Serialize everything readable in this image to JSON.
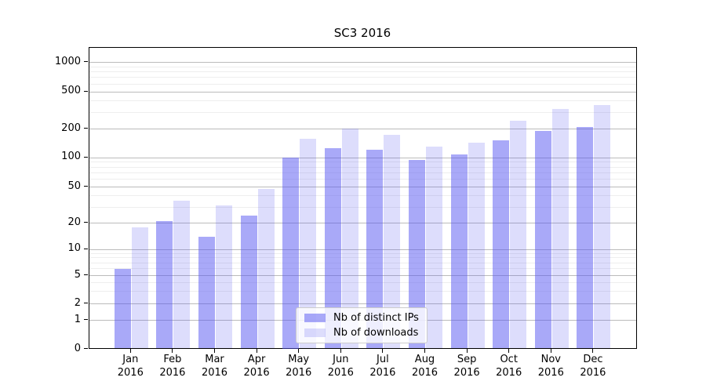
{
  "title": "SC3 2016",
  "legend": {
    "items": [
      {
        "label": "Nb of distinct IPs",
        "swatch": "dark"
      },
      {
        "label": "Nb of downloads",
        "swatch": "light"
      }
    ]
  },
  "colors": {
    "bar_base_rgb": "84,84,242",
    "bar_dark_alpha": 0.5,
    "bar_light_alpha": 0.2,
    "grid_major": "#bbbbbb",
    "grid_minor": "#eeeeee",
    "spine": "#000000",
    "text": "#000000",
    "legend_border": "#cccccc"
  },
  "axes": {
    "y_major_ticks": [
      0,
      1,
      2,
      5,
      10,
      20,
      50,
      100,
      200,
      500,
      1000
    ],
    "y_minor_ticks": [
      3,
      4,
      6,
      7,
      8,
      9,
      30,
      40,
      60,
      70,
      80,
      90,
      300,
      400,
      600,
      700,
      800,
      900
    ],
    "x_tick_line1": [
      "Jan",
      "Feb",
      "Mar",
      "Apr",
      "May",
      "Jun",
      "Jul",
      "Aug",
      "Sep",
      "Oct",
      "Nov",
      "Dec"
    ],
    "x_tick_line2": "2016"
  },
  "chart_data": {
    "type": "bar",
    "title": "SC3 2016",
    "categories": [
      "Jan 2016",
      "Feb 2016",
      "Mar 2016",
      "Apr 2016",
      "May 2016",
      "Jun 2016",
      "Jul 2016",
      "Aug 2016",
      "Sep 2016",
      "Oct 2016",
      "Nov 2016",
      "Dec 2016"
    ],
    "series": [
      {
        "name": "Nb of distinct IPs",
        "values": [
          6,
          21,
          14,
          24,
          100,
          126,
          121,
          95,
          107,
          153,
          191,
          211
        ]
      },
      {
        "name": "Nb of downloads",
        "values": [
          18,
          35,
          31,
          48,
          158,
          203,
          173,
          130,
          144,
          243,
          327,
          359
        ]
      }
    ],
    "xlabel": "",
    "ylabel": "",
    "yscale": "symlog",
    "ylim": [
      0,
      1400
    ],
    "y_major_ticks": [
      0,
      1,
      2,
      5,
      10,
      20,
      50,
      100,
      200,
      500,
      1000
    ],
    "grid": true,
    "legend_position": "lower-center"
  }
}
